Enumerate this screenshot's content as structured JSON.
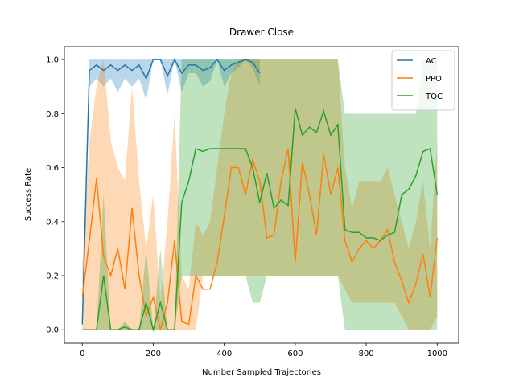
{
  "chart_data": {
    "type": "line",
    "title": "Drawer Close",
    "x_label": "Number Sampled Trajectories",
    "y_label": "Success Rate",
    "xlim": [
      -50.5,
      1060.5
    ],
    "ylim": [
      -0.05,
      1.048
    ],
    "xticks": [
      0,
      200,
      400,
      600,
      800,
      1000
    ],
    "yticks": [
      {
        "value": 0,
        "label": "0.0"
      },
      0.2,
      0.4,
      0.6,
      0.8,
      {
        "value": 1,
        "label": "1.0"
      }
    ],
    "legend_position": "upper-right",
    "series": [
      {
        "name": "AC",
        "color": "#1f77b4",
        "x": [
          0,
          20,
          40,
          60,
          80,
          100,
          120,
          140,
          160,
          180,
          200,
          220,
          240,
          260,
          280,
          300,
          320,
          340,
          360,
          380,
          400,
          420,
          440,
          460,
          480,
          500
        ],
        "values": [
          0.02,
          0.96,
          0.98,
          0.96,
          0.98,
          0.96,
          0.98,
          0.96,
          0.98,
          0.93,
          1.0,
          1.0,
          0.94,
          1.0,
          0.95,
          0.98,
          0.98,
          0.96,
          0.97,
          1.0,
          0.96,
          0.98,
          0.99,
          1.0,
          0.99,
          0.95
        ],
        "lower": [
          0.0,
          0.9,
          0.93,
          0.9,
          0.93,
          0.88,
          0.93,
          0.9,
          0.93,
          0.85,
          1.0,
          1.0,
          0.87,
          1.0,
          0.88,
          0.95,
          0.95,
          0.9,
          0.92,
          1.0,
          0.9,
          0.95,
          0.97,
          1.0,
          0.97,
          0.9
        ],
        "upper": [
          0.05,
          1,
          1,
          1,
          1,
          1,
          1,
          1,
          1,
          1,
          1,
          1,
          1,
          1,
          1,
          1,
          1,
          1,
          1,
          1,
          1,
          1,
          1,
          1,
          1,
          1
        ]
      },
      {
        "name": "PPO",
        "color": "#ff7f0e",
        "x": [
          0,
          20,
          40,
          60,
          80,
          100,
          120,
          140,
          160,
          180,
          200,
          220,
          240,
          260,
          280,
          300,
          320,
          340,
          360,
          380,
          400,
          420,
          440,
          460,
          480,
          500,
          520,
          540,
          560,
          580,
          600,
          620,
          640,
          660,
          680,
          700,
          720,
          740,
          760,
          780,
          800,
          820,
          840,
          860,
          880,
          900,
          920,
          940,
          960,
          980,
          1000
        ],
        "values": [
          0.12,
          0.33,
          0.56,
          0.27,
          0.2,
          0.3,
          0.15,
          0.45,
          0.2,
          0.05,
          0.12,
          0.0,
          0.1,
          0.33,
          0.03,
          0.02,
          0.2,
          0.15,
          0.15,
          0.25,
          0.42,
          0.6,
          0.6,
          0.5,
          0.63,
          0.55,
          0.34,
          0.35,
          0.55,
          0.67,
          0.25,
          0.62,
          0.5,
          0.35,
          0.65,
          0.5,
          0.6,
          0.33,
          0.25,
          0.3,
          0.33,
          0.3,
          0.33,
          0.37,
          0.25,
          0.18,
          0.1,
          0.17,
          0.28,
          0.12,
          0.34
        ],
        "lower": [
          0,
          0,
          0,
          0,
          0,
          0,
          0,
          0,
          0,
          0,
          0,
          0,
          0,
          0,
          0,
          0,
          0,
          0.2,
          0.2,
          0.2,
          0.2,
          0.2,
          0.2,
          0.2,
          0.2,
          0.2,
          0.2,
          0.2,
          0.2,
          0.2,
          0.2,
          0.2,
          0.2,
          0.2,
          0.2,
          0.2,
          0.2,
          0.15,
          0.1,
          0.1,
          0.1,
          0.1,
          0.1,
          0.1,
          0.1,
          0.05,
          0,
          0,
          0,
          0,
          0.05
        ],
        "upper": [
          0.25,
          0.7,
          0.9,
          1.0,
          0.7,
          0.6,
          0.55,
          0.9,
          0.55,
          0.3,
          0.5,
          0.1,
          0.4,
          0.8,
          0.2,
          0.15,
          0.4,
          0.35,
          0.4,
          0.6,
          0.8,
          0.95,
          1,
          1,
          1,
          1,
          1,
          1,
          1,
          1,
          1,
          1,
          1,
          1,
          1,
          1,
          1,
          0.6,
          0.45,
          0.55,
          0.55,
          0.55,
          0.55,
          0.6,
          0.5,
          0.4,
          0.3,
          0.4,
          0.55,
          0.3,
          0.7
        ]
      },
      {
        "name": "TQC",
        "color": "#2ca02c",
        "x": [
          0,
          20,
          40,
          60,
          80,
          100,
          120,
          140,
          160,
          180,
          200,
          220,
          240,
          260,
          280,
          300,
          320,
          340,
          360,
          380,
          400,
          420,
          440,
          460,
          480,
          500,
          520,
          540,
          560,
          580,
          600,
          620,
          640,
          660,
          680,
          700,
          720,
          740,
          760,
          780,
          800,
          820,
          840,
          860,
          880,
          900,
          920,
          940,
          960,
          980,
          1000
        ],
        "values": [
          0,
          0,
          0,
          0.2,
          0,
          0,
          0.01,
          0,
          0,
          0.1,
          0,
          0.1,
          0,
          0,
          0.47,
          0.55,
          0.67,
          0.66,
          0.67,
          0.67,
          0.67,
          0.67,
          0.67,
          0.67,
          0.6,
          0.47,
          0.58,
          0.45,
          0.48,
          0.46,
          0.82,
          0.72,
          0.75,
          0.73,
          0.81,
          0.72,
          0.76,
          0.37,
          0.36,
          0.36,
          0.34,
          0.34,
          0.33,
          0.35,
          0.36,
          0.5,
          0.52,
          0.57,
          0.66,
          0.67,
          0.5
        ],
        "lower": [
          0,
          0,
          0,
          0,
          0,
          0,
          0,
          0,
          0,
          0,
          0,
          0,
          0,
          0,
          0.2,
          0.2,
          0.2,
          0.2,
          0.2,
          0.2,
          0.2,
          0.2,
          0.2,
          0.2,
          0.1,
          0.1,
          0.2,
          0.2,
          0.2,
          0.2,
          0.2,
          0.2,
          0.2,
          0.2,
          0.2,
          0.2,
          0.2,
          0,
          0,
          0,
          0,
          0,
          0,
          0,
          0,
          0,
          0,
          0,
          0,
          0,
          0
        ],
        "upper": [
          0,
          0,
          0,
          0.5,
          0,
          0,
          0.03,
          0,
          0,
          0.3,
          0,
          0.3,
          0,
          0,
          1,
          1,
          1,
          1,
          1,
          1,
          1,
          1,
          1,
          1,
          1,
          1,
          1,
          1,
          1,
          1,
          1,
          1,
          1,
          1,
          1,
          1,
          1,
          0.8,
          0.8,
          0.8,
          0.8,
          0.8,
          0.8,
          0.8,
          0.8,
          0.8,
          0.8,
          0.8,
          1,
          1,
          1
        ]
      }
    ]
  }
}
